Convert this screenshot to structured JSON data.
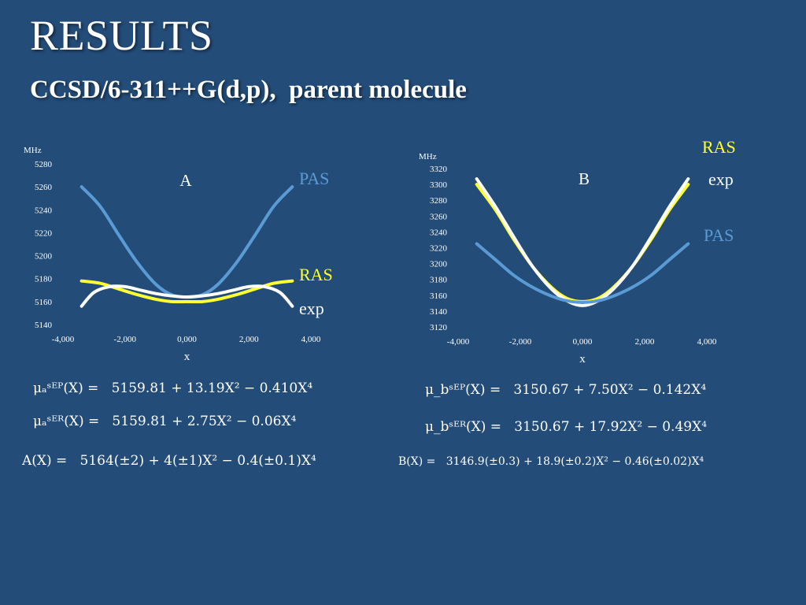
{
  "title": "RESULTS",
  "subtitle": "CCSD/6-311++G(d,p),  parent molecule",
  "colors": {
    "background": "#234c78",
    "PAS": "#5b9bd5",
    "RAS": "#ffff33",
    "exp": "#ffffff",
    "text": "#ffffff"
  },
  "chart_data": [
    {
      "type": "line",
      "panel_label": "A",
      "ylabel": "MHz",
      "xlabel": "x",
      "ylim": [
        5140,
        5280
      ],
      "yticks": [
        5140,
        5160,
        5180,
        5200,
        5220,
        5240,
        5260,
        5280
      ],
      "xlim": [
        -4,
        4
      ],
      "xticks": [
        -4,
        -2,
        0,
        2,
        4
      ],
      "xtick_labels": [
        "-4,000",
        "-2,000",
        "0,000",
        "2,000",
        "4,000"
      ],
      "legend_position": "right",
      "series": [
        {
          "name": "PAS",
          "color": "#5b9bd5",
          "x": [
            -3.4,
            -2.8,
            -2.2,
            -1.6,
            -1.0,
            -0.5,
            0,
            0.5,
            1.0,
            1.6,
            2.2,
            2.8,
            3.4
          ],
          "y": [
            5260,
            5243,
            5218,
            5194,
            5175,
            5166,
            5164,
            5166,
            5175,
            5194,
            5218,
            5243,
            5260
          ]
        },
        {
          "name": "RAS",
          "color": "#ffff33",
          "x": [
            -3.4,
            -2.8,
            -2.2,
            -1.6,
            -1.0,
            -0.5,
            0,
            0.5,
            1.0,
            1.6,
            2.2,
            2.8,
            3.4
          ],
          "y": [
            5178,
            5176,
            5171,
            5166,
            5162,
            5160,
            5160,
            5160,
            5162,
            5166,
            5171,
            5176,
            5178
          ]
        },
        {
          "name": "exp",
          "color": "#ffffff",
          "x": [
            -3.4,
            -3.0,
            -2.5,
            -2.0,
            -1.5,
            -1.0,
            -0.5,
            0,
            0.5,
            1.0,
            1.5,
            2.0,
            2.5,
            3.0,
            3.4
          ],
          "y": [
            5156,
            5168,
            5173,
            5173,
            5170,
            5167,
            5165,
            5164,
            5165,
            5167,
            5170,
            5173,
            5173,
            5168,
            5156
          ]
        }
      ]
    },
    {
      "type": "line",
      "panel_label": "B",
      "ylabel": "MHz",
      "xlabel": "x",
      "ylim": [
        3120,
        3320
      ],
      "yticks": [
        3120,
        3140,
        3160,
        3180,
        3200,
        3220,
        3240,
        3260,
        3280,
        3300,
        3320
      ],
      "xlim": [
        -4,
        4
      ],
      "xticks": [
        -4,
        -2,
        0,
        2,
        4
      ],
      "xtick_labels": [
        "-4,000",
        "-2,000",
        "0,000",
        "2,000",
        "4,000"
      ],
      "legend_position": "right",
      "series": [
        {
          "name": "RAS",
          "color": "#ffff33",
          "x": [
            -3.4,
            -2.8,
            -2.2,
            -1.6,
            -1.0,
            -0.5,
            0,
            0.5,
            1.0,
            1.6,
            2.2,
            2.8,
            3.4
          ],
          "y": [
            3300,
            3268,
            3230,
            3196,
            3170,
            3156,
            3152,
            3156,
            3170,
            3196,
            3230,
            3268,
            3300
          ]
        },
        {
          "name": "exp",
          "color": "#ffffff",
          "x": [
            -3.4,
            -2.8,
            -2.2,
            -1.6,
            -1.0,
            -0.5,
            0,
            0.5,
            1.0,
            1.6,
            2.2,
            2.8,
            3.4
          ],
          "y": [
            3307,
            3272,
            3233,
            3196,
            3168,
            3153,
            3147,
            3153,
            3168,
            3196,
            3233,
            3272,
            3307
          ]
        },
        {
          "name": "PAS",
          "color": "#5b9bd5",
          "x": [
            -3.4,
            -2.8,
            -2.2,
            -1.6,
            -1.0,
            -0.5,
            0,
            0.5,
            1.0,
            1.6,
            2.2,
            2.8,
            3.4
          ],
          "y": [
            3225,
            3205,
            3185,
            3170,
            3159,
            3153,
            3151,
            3153,
            3159,
            3170,
            3185,
            3205,
            3225
          ]
        }
      ]
    }
  ],
  "equations": {
    "mu_a_sep": "μₐˢᴱᴾ(X) =   5159.81 + 13.19X² − 0.410X⁴",
    "mu_a_ser": "μₐˢᴱᴿ(X) =   5159.81 + 2.75X² − 0.06X⁴",
    "a_fit": "A(X) =   5164(±2) + 4(±1)X² − 0.4(±0.1)X⁴",
    "mu_b_sep": "μ_bˢᴱᴾ(X) =   3150.67 + 7.50X² − 0.142X⁴",
    "mu_b_ser": "μ_bˢᴱᴿ(X) =   3150.67 + 17.92X² − 0.49X⁴",
    "b_fit": "B(X) =   3146.9(±0.3) + 18.9(±0.2)X² − 0.46(±0.02)X⁴"
  }
}
